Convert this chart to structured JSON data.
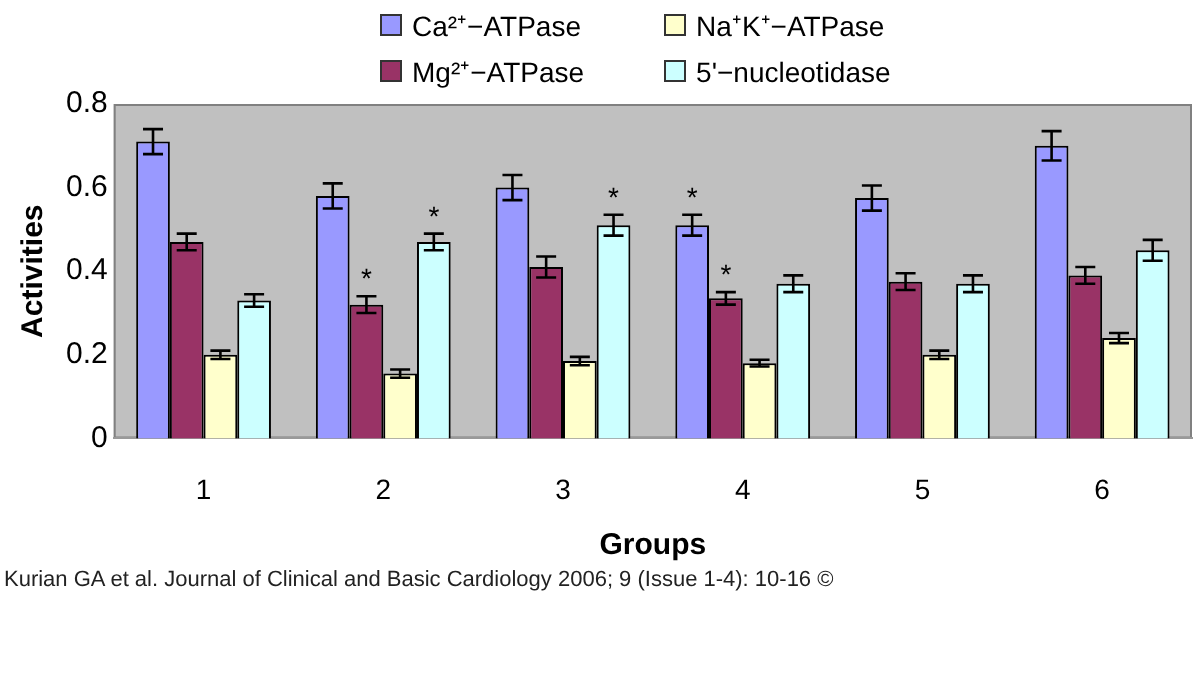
{
  "chart_data": {
    "type": "bar",
    "xlabel": "Groups",
    "ylabel": "Activities",
    "categories": [
      "1",
      "2",
      "3",
      "4",
      "5",
      "6"
    ],
    "series": [
      {
        "name": "Ca²⁺−ATPase",
        "color": "#9999ff",
        "values": [
          0.71,
          0.58,
          0.6,
          0.51,
          0.575,
          0.7
        ],
        "errors": [
          0.03,
          0.03,
          0.03,
          0.025,
          0.03,
          0.035
        ],
        "value_labels": [
          null,
          null,
          null,
          "*",
          null,
          null
        ]
      },
      {
        "name": "Mg²⁺−ATPase",
        "color": "#993366",
        "values": [
          0.47,
          0.32,
          0.41,
          0.335,
          0.375,
          0.39
        ],
        "errors": [
          0.02,
          0.02,
          0.025,
          0.015,
          0.02,
          0.02
        ],
        "value_labels": [
          null,
          "*",
          null,
          "*",
          null,
          null
        ]
      },
      {
        "name": "Na⁺K⁺−ATPase",
        "color": "#ffffcc",
        "values": [
          0.2,
          0.155,
          0.185,
          0.18,
          0.2,
          0.24
        ],
        "errors": [
          0.01,
          0.01,
          0.01,
          0.008,
          0.01,
          0.012
        ]
      },
      {
        "name": "5'−nucleotidase",
        "color": "#ccffff",
        "values": [
          0.33,
          0.47,
          0.51,
          0.37,
          0.37,
          0.45
        ],
        "errors": [
          0.015,
          0.02,
          0.025,
          0.02,
          0.02,
          0.025
        ],
        "value_labels": [
          null,
          "*",
          "*",
          null,
          null,
          null
        ]
      }
    ],
    "ylim": [
      0,
      0.8
    ],
    "yticks": [
      0,
      0.2,
      0.4,
      0.6,
      0.8
    ],
    "legend": "top",
    "annotations": [
      "Kurian GA et al. Journal of Clinical and Basic Cardiology 2006; 9 (Issue 1-4): 10-16 ©"
    ]
  }
}
